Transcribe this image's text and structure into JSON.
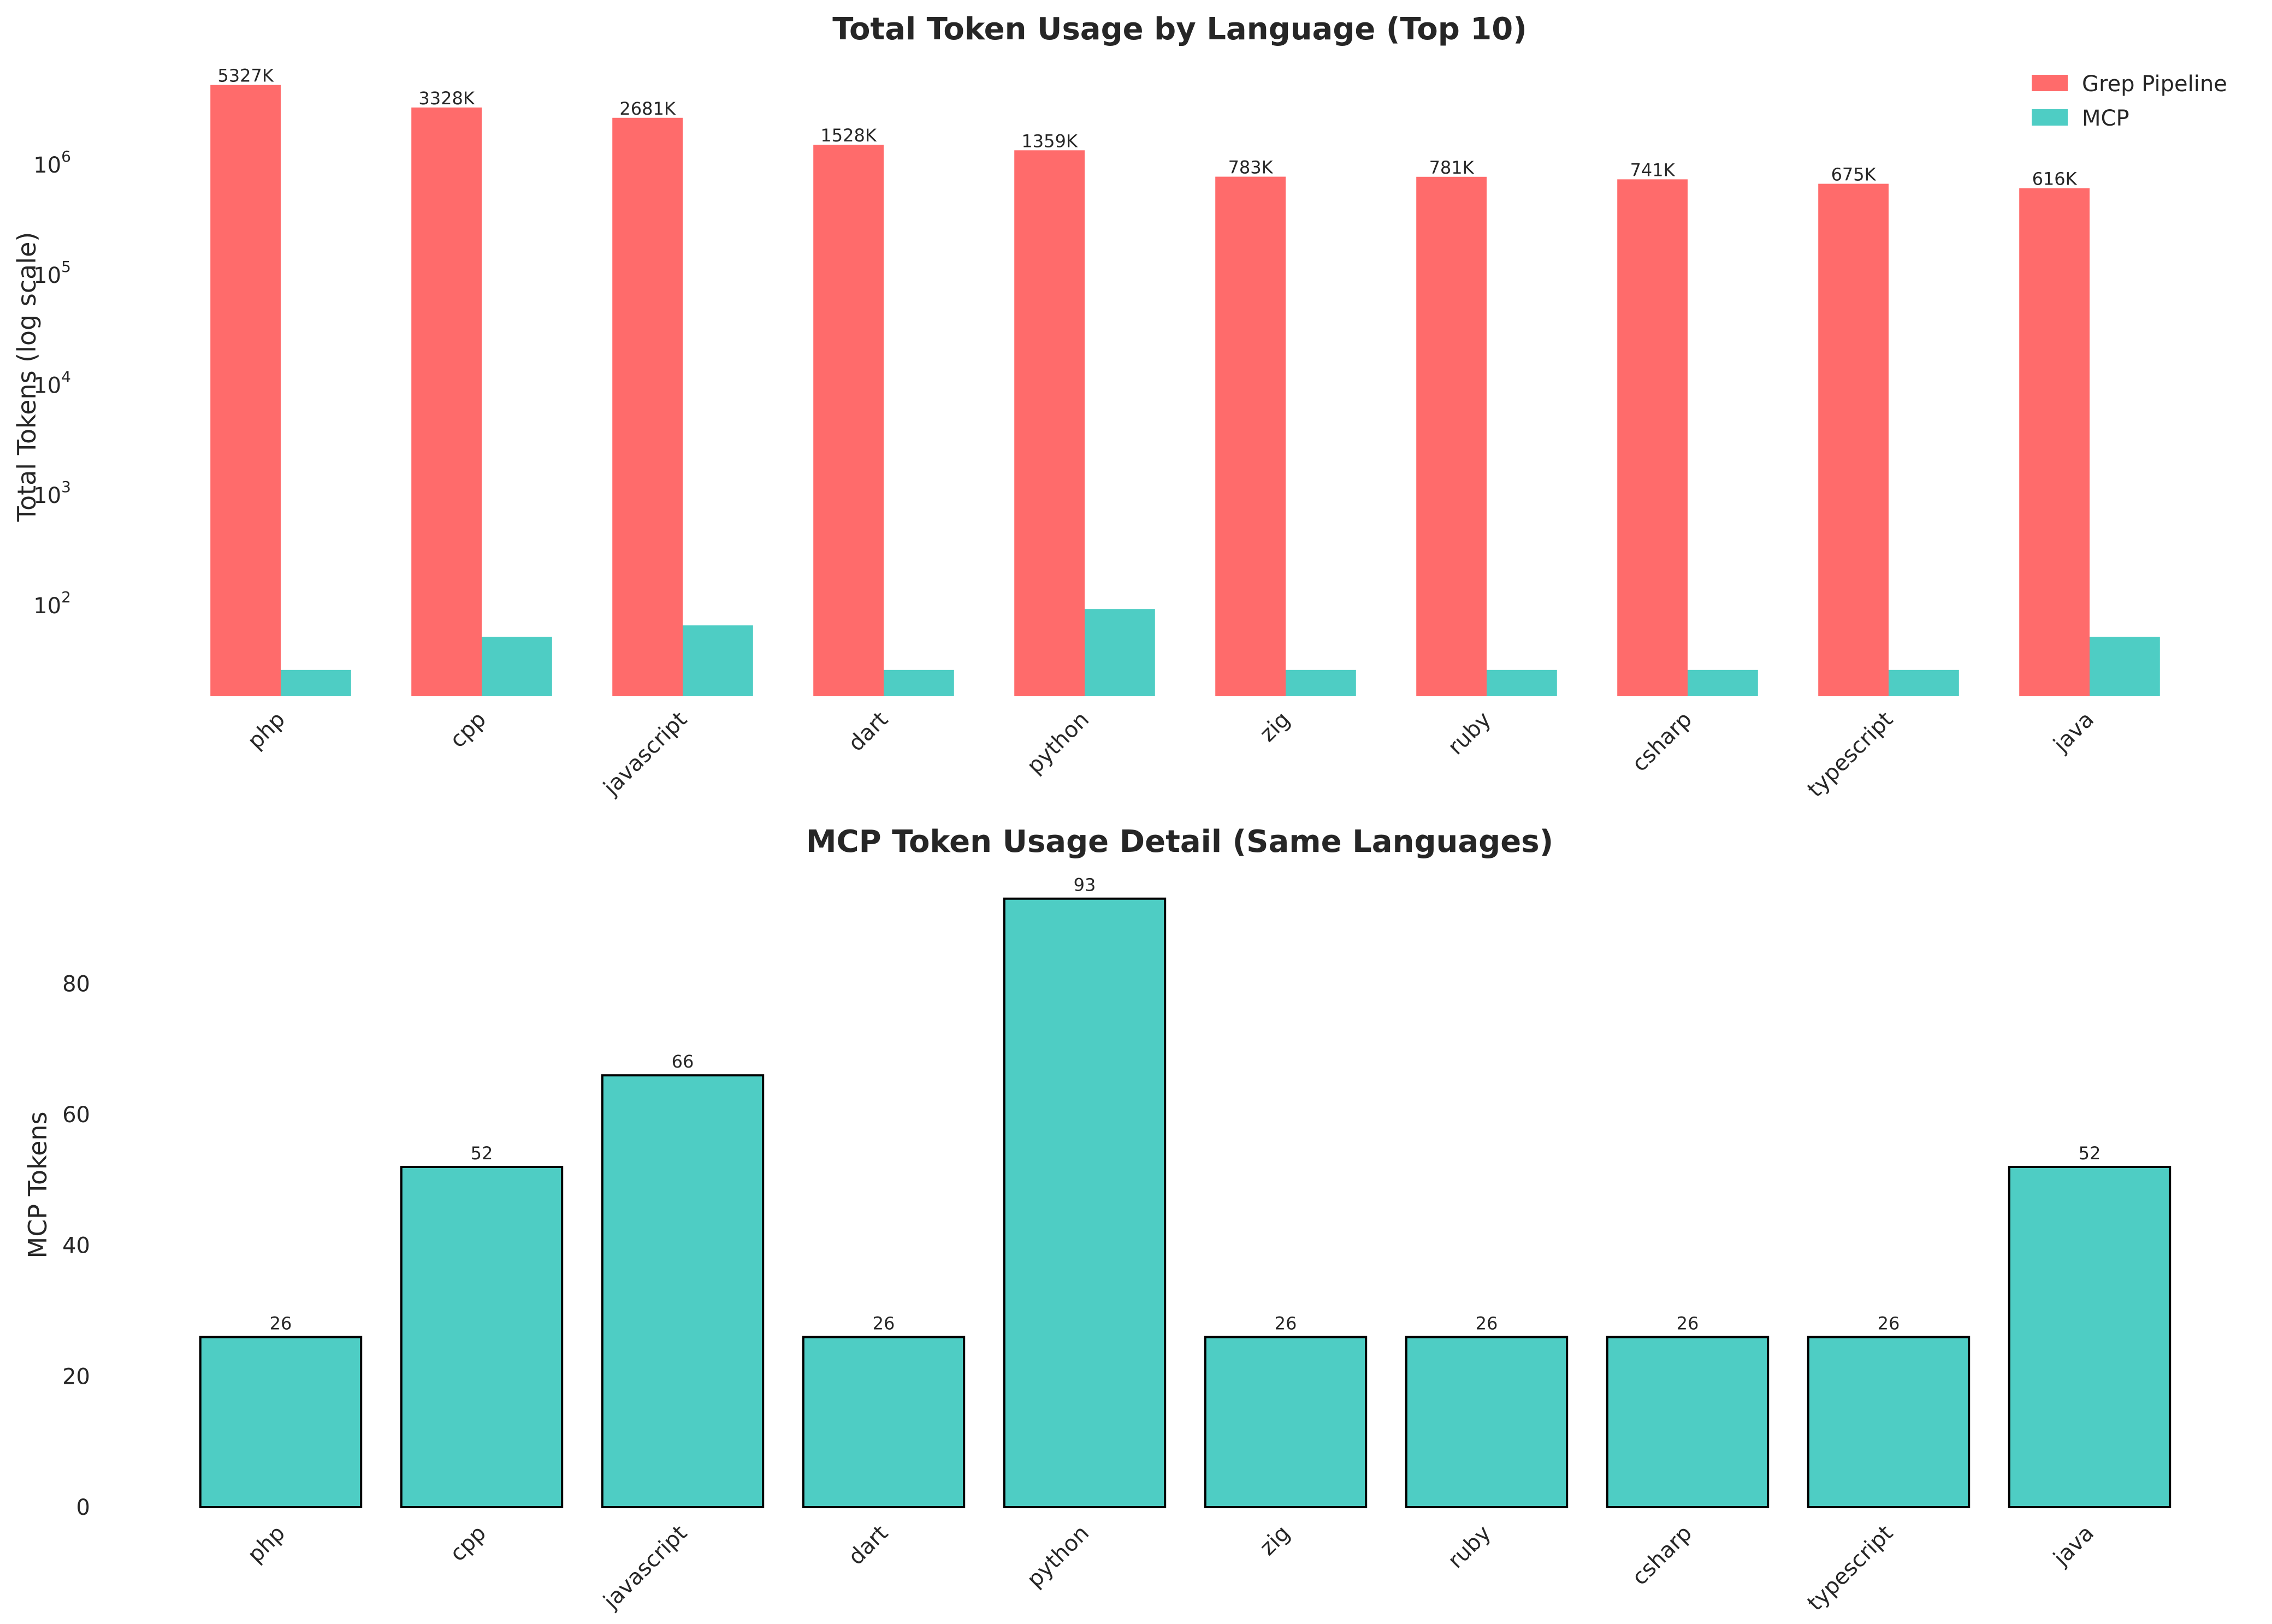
{
  "colors": {
    "grep": "#ff6b6b",
    "mcp": "#4ecdc4",
    "edge": "#000000",
    "text": "#262626"
  },
  "chart_data": [
    {
      "type": "bar",
      "title": "Total Token Usage by Language (Top 10)",
      "xlabel": "",
      "ylabel": "Total Tokens (log scale)",
      "yscale": "log",
      "ylim": [
        15,
        8000000
      ],
      "grid": false,
      "legend_position": "top-right",
      "categories": [
        "php",
        "cpp",
        "javascript",
        "dart",
        "python",
        "zig",
        "ruby",
        "csharp",
        "typescript",
        "java"
      ],
      "y_ticks": [
        {
          "value": 100,
          "label": "10",
          "exp": "2"
        },
        {
          "value": 1000,
          "label": "10",
          "exp": "3"
        },
        {
          "value": 10000,
          "label": "10",
          "exp": "4"
        },
        {
          "value": 100000,
          "label": "10",
          "exp": "5"
        },
        {
          "value": 1000000,
          "label": "10",
          "exp": "6"
        }
      ],
      "series": [
        {
          "name": "Grep Pipeline",
          "color": "#ff6b6b",
          "values": [
            5327000,
            3328000,
            2681000,
            1528000,
            1359000,
            783000,
            781000,
            741000,
            675000,
            616000
          ],
          "labels": [
            "5327K",
            "3328K",
            "2681K",
            "1528K",
            "1359K",
            "783K",
            "781K",
            "741K",
            "675K",
            "616K"
          ]
        },
        {
          "name": "MCP",
          "color": "#4ecdc4",
          "values": [
            26,
            52,
            66,
            26,
            93,
            26,
            26,
            26,
            26,
            52
          ]
        }
      ]
    },
    {
      "type": "bar",
      "title": "MCP Token Usage Detail (Same Languages)",
      "xlabel": "",
      "ylabel": "MCP Tokens",
      "ylim": [
        0,
        97.65
      ],
      "grid": false,
      "categories": [
        "php",
        "cpp",
        "javascript",
        "dart",
        "python",
        "zig",
        "ruby",
        "csharp",
        "typescript",
        "java"
      ],
      "y_ticks": [
        0,
        20,
        40,
        60,
        80
      ],
      "values": [
        26,
        52,
        66,
        26,
        93,
        26,
        26,
        26,
        26,
        52
      ],
      "labels": [
        "26",
        "52",
        "66",
        "26",
        "93",
        "26",
        "26",
        "26",
        "26",
        "52"
      ]
    }
  ]
}
